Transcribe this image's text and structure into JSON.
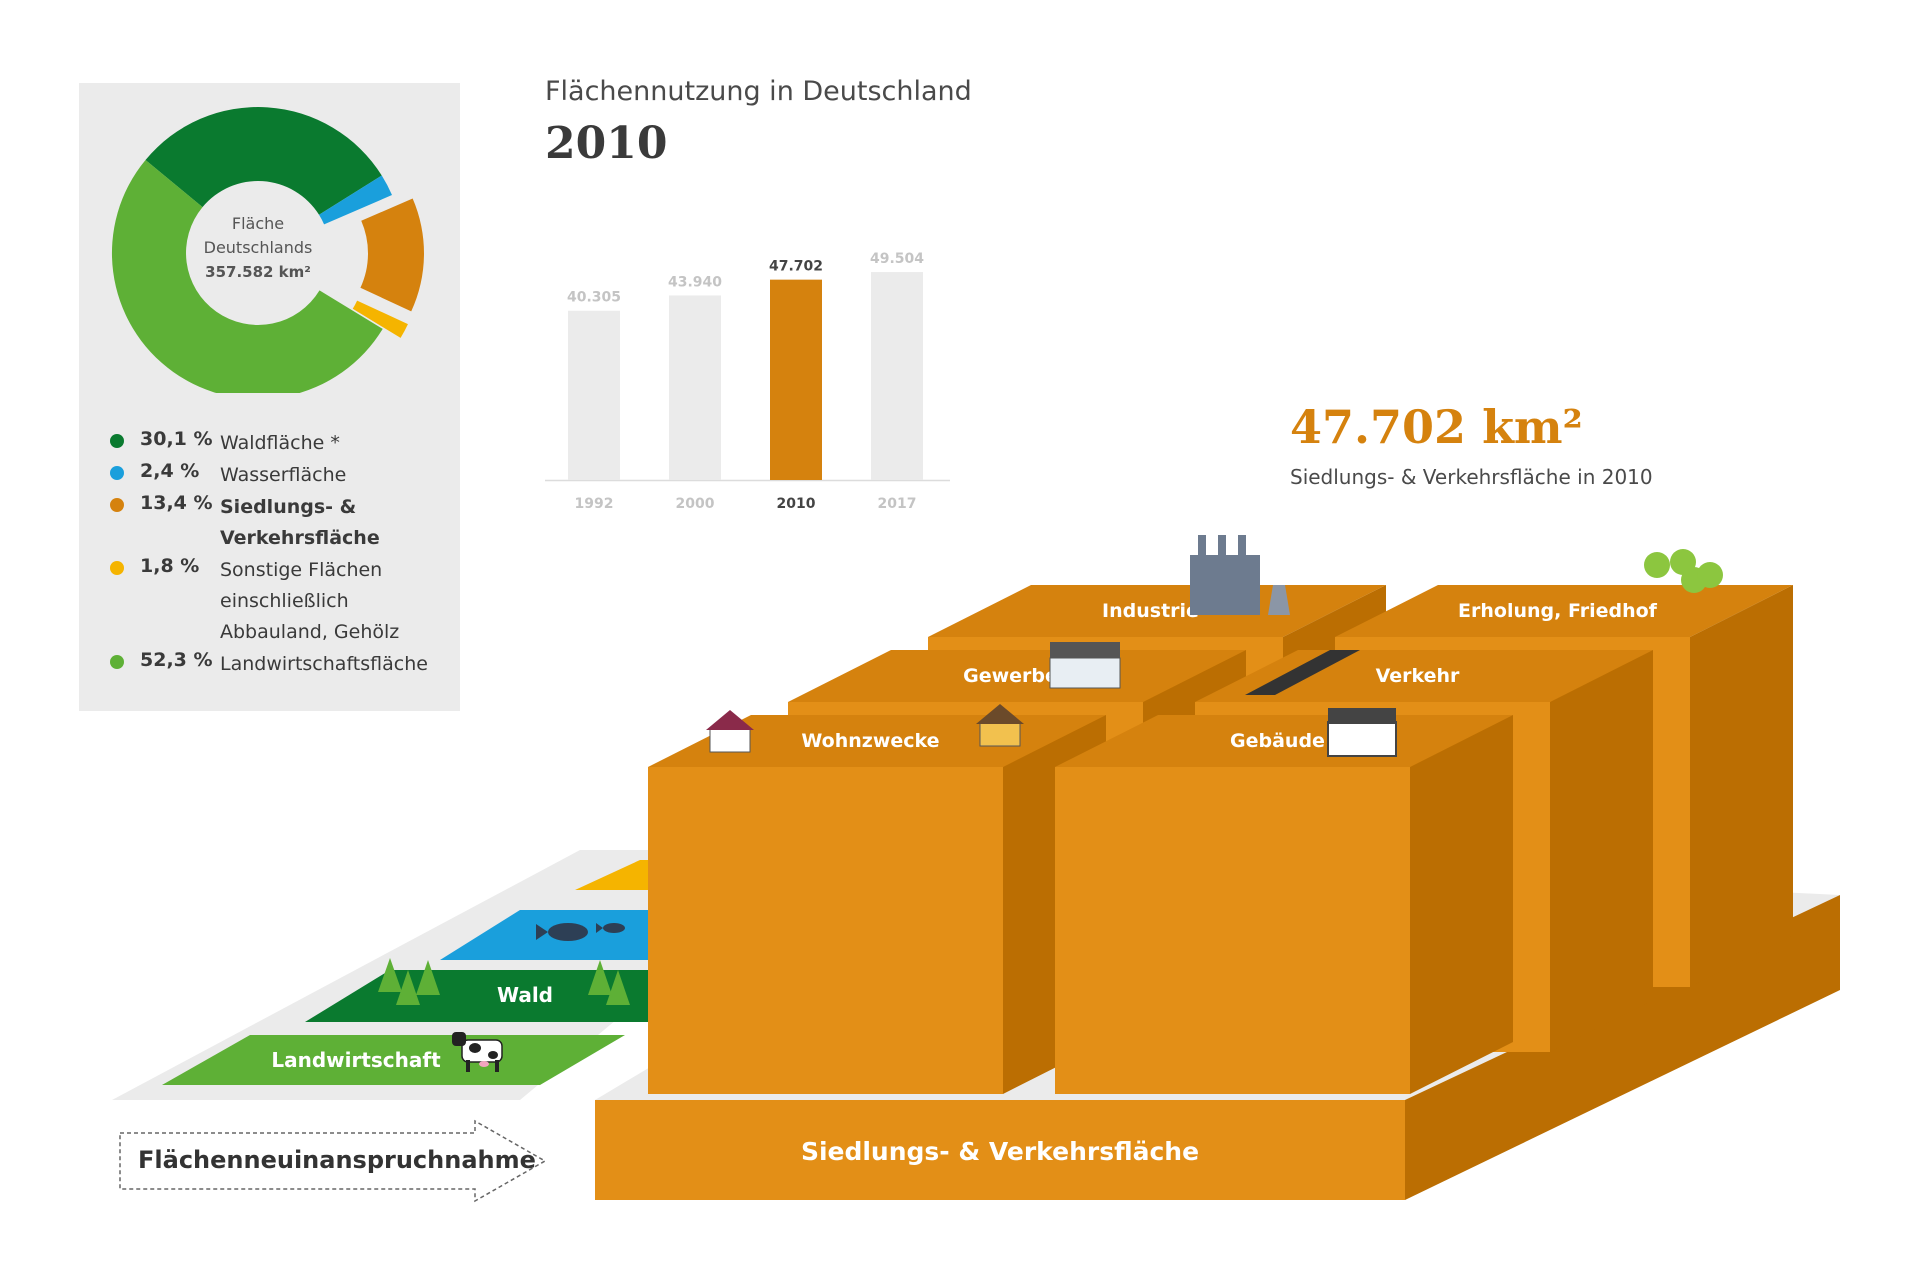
{
  "chart_data": [
    {
      "type": "pie",
      "center_label": [
        "Fläche",
        "Deutschlands",
        "357.582 km²"
      ],
      "slices": [
        {
          "label": "Waldfläche *",
          "percent": "30,1 %",
          "value": 30.1,
          "color": "#0a7a2f"
        },
        {
          "label": "Wasserfläche",
          "percent": "2,4 %",
          "value": 2.4,
          "color": "#1a9fdc"
        },
        {
          "label": "Siedlungs- & Verkehrsfläche",
          "percent": "13,4 %",
          "value": 13.4,
          "color": "#d5820e",
          "label_lines": [
            "Siedlungs- &",
            "Verkehrsfläche"
          ],
          "bold": true,
          "exploded": true
        },
        {
          "label": "Sonstige Flächen einschließlich Abbauland, Gehölz",
          "percent": "1,8 %",
          "value": 1.8,
          "color": "#f5b400",
          "label_lines": [
            "Sonstige Flächen",
            "einschließlich",
            "Abbauland, Gehölz"
          ],
          "exploded": true
        },
        {
          "label": "Landwirtschaftsfläche",
          "percent": "52,3 %",
          "value": 52.3,
          "color": "#5eb036"
        }
      ]
    },
    {
      "type": "bar",
      "title": "Flächennutzung in Deutschland",
      "subtitle": "2010",
      "categories": [
        "1992",
        "2000",
        "2010",
        "2017"
      ],
      "values": [
        40305,
        43940,
        47702,
        49504
      ],
      "value_labels": [
        "40.305",
        "43.940",
        "47.702",
        "49.504"
      ],
      "highlight": "2010",
      "colors": {
        "default": "#ebebeb",
        "highlight": "#d5820e"
      }
    }
  ],
  "summary": {
    "value": "47.702 km²",
    "caption": "Siedlungs- & Verkehrsfläche in 2010"
  },
  "blocks": {
    "base": "Siedlungs- & Verkehrsfläche",
    "items": [
      "Industrie",
      "Erholung, Friedhof",
      "Gewerbe",
      "Verkehr",
      "Wohnzwecke",
      "Gebäude"
    ]
  },
  "strips": {
    "wald": "Wald",
    "landwirtschaft": "Landwirtschaft"
  },
  "arrow_label": "Flächenneuinanspruchnahme",
  "colors": {
    "orange_front": "#e38f17",
    "orange_side": "#bb6e02",
    "orange_top": "#d5820e"
  }
}
